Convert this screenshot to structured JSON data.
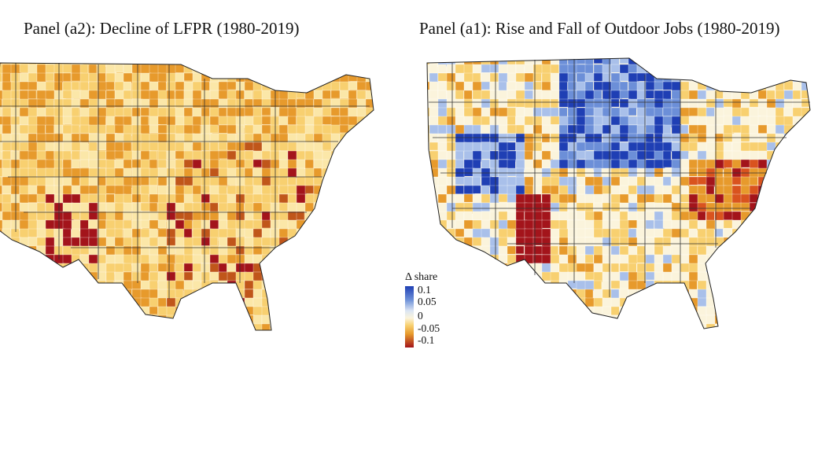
{
  "panels": {
    "left": {
      "title": "Panel (a2): Decline of LFPR (1980-2019)"
    },
    "right": {
      "title": "Panel (a1): Rise and Fall of Outdoor Jobs (1980-2019)"
    }
  },
  "legend": {
    "title": "Δ share",
    "ticks": [
      "0.1",
      "0.05",
      "0",
      "-0.05",
      "-0.1"
    ]
  },
  "colors": {
    "blue_strong": "#1f3fb4",
    "blue_light": "#a9c0ea",
    "neutral": "#fbf4dc",
    "yellow": "#f8d070",
    "orange": "#e79a2c",
    "dark_red": "#a3141b",
    "border": "#222222"
  }
}
